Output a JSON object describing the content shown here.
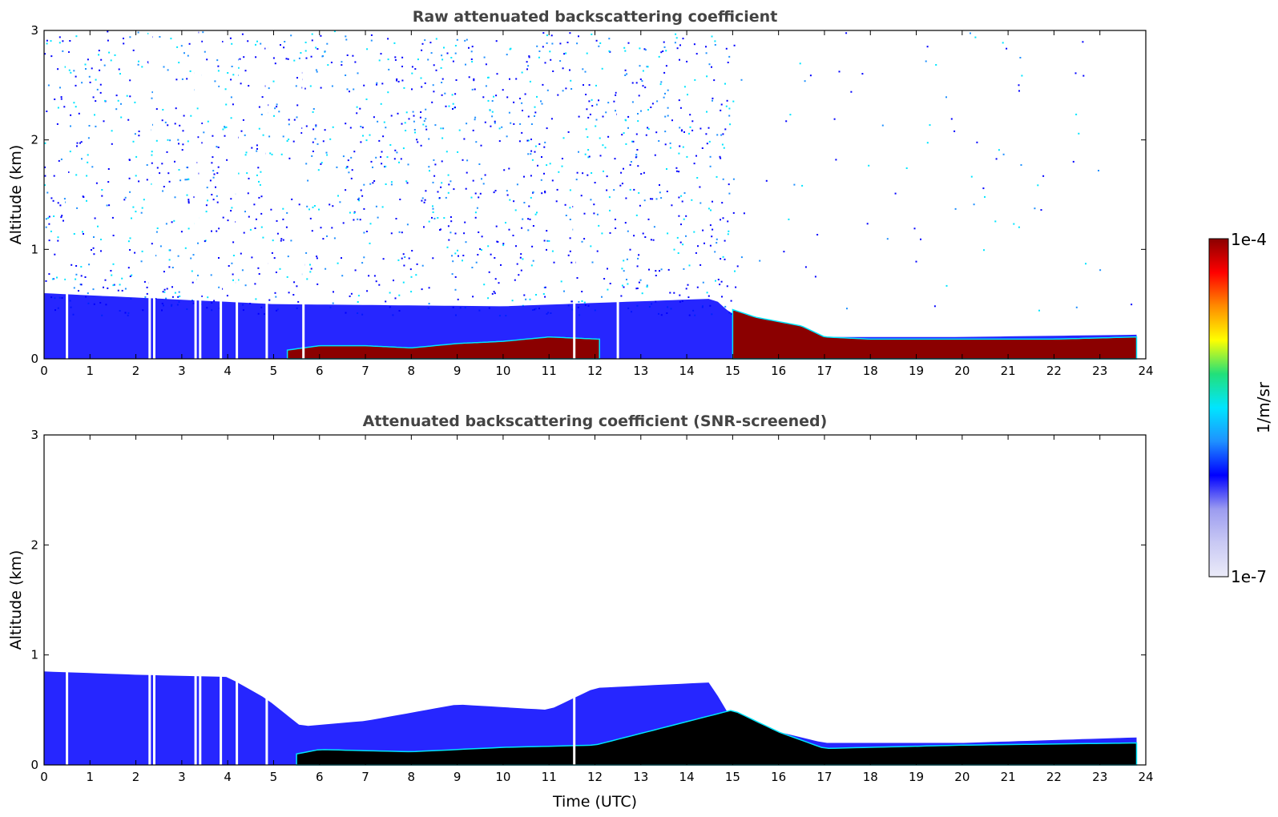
{
  "colormap": [
    "#ebebf8",
    "#c9c9f4",
    "#9c9cf0",
    "#0000ff",
    "#1e90ff",
    "#00e5ff",
    "#22e07a",
    "#ffff00",
    "#ff8c00",
    "#ff0000",
    "#8b0000"
  ],
  "chart_data": [
    {
      "type": "heatmap",
      "title": "Raw attenuated backscattering coefficient",
      "xlabel": "",
      "ylabel": "Altitude (km)",
      "xlim": [
        0,
        24
      ],
      "ylim": [
        0,
        3
      ],
      "xticks": [
        "0",
        "1",
        "2",
        "3",
        "4",
        "5",
        "6",
        "7",
        "8",
        "9",
        "10",
        "11",
        "12",
        "13",
        "14",
        "15",
        "16",
        "17",
        "18",
        "19",
        "20",
        "21",
        "22",
        "23",
        "24"
      ],
      "yticks": [
        "0",
        "1",
        "2",
        "3"
      ],
      "layers": [
        {
          "feature": "dense signal near surface",
          "x": [
            0,
            5,
            10,
            14.6,
            15,
            17,
            20,
            23.8
          ],
          "top_km": [
            0.6,
            0.5,
            0.48,
            0.55,
            0.4,
            0.2,
            0.2,
            0.22
          ],
          "level": "low"
        },
        {
          "feature": "aerosol layer",
          "x": [
            5.3,
            6,
            7,
            8,
            9,
            10,
            11,
            12.1
          ],
          "top_km": [
            0.08,
            0.12,
            0.12,
            0.1,
            0.14,
            0.16,
            0.2,
            0.18
          ],
          "level": "high"
        },
        {
          "feature": "aerosol layer",
          "x": [
            15,
            15.5,
            16.5,
            17,
            18,
            20,
            22,
            23.8
          ],
          "top_km": [
            0.45,
            0.38,
            0.3,
            0.2,
            0.18,
            0.18,
            0.18,
            0.2
          ],
          "level": "high"
        }
      ],
      "gaps_utc": [
        0.5,
        2.3,
        2.4,
        3.3,
        3.4,
        3.85,
        4.2,
        4.85,
        5.65,
        11.55,
        12.5
      ]
    },
    {
      "type": "heatmap",
      "title": "Attenuated backscattering coefficient (SNR-screened)",
      "xlabel": "Time (UTC)",
      "ylabel": "Altitude (km)",
      "xlim": [
        0,
        24
      ],
      "ylim": [
        0,
        3
      ],
      "xticks": [
        "0",
        "1",
        "2",
        "3",
        "4",
        "5",
        "6",
        "7",
        "8",
        "9",
        "10",
        "11",
        "12",
        "13",
        "14",
        "15",
        "16",
        "17",
        "18",
        "19",
        "20",
        "21",
        "22",
        "23",
        "24"
      ],
      "yticks": [
        "0",
        "1",
        "2",
        "3"
      ],
      "layers": [
        {
          "feature": "residual layer",
          "x": [
            0,
            2,
            4,
            4.85,
            5.6,
            7,
            9,
            11,
            12,
            14.5,
            15,
            17,
            20,
            23.8
          ],
          "top_km": [
            0.85,
            0.82,
            0.8,
            0.6,
            0.35,
            0.4,
            0.55,
            0.5,
            0.7,
            0.75,
            0.4,
            0.2,
            0.2,
            0.25
          ],
          "level": "low"
        },
        {
          "feature": "saturated aerosol layer",
          "x": [
            5.5,
            6,
            8,
            10,
            12,
            15,
            16,
            17,
            20,
            23.8
          ],
          "top_km": [
            0.1,
            0.14,
            0.12,
            0.16,
            0.18,
            0.5,
            0.3,
            0.15,
            0.18,
            0.2
          ],
          "level": "saturated"
        }
      ],
      "gaps_utc": [
        0.5,
        2.3,
        2.4,
        3.3,
        3.4,
        3.85,
        4.2,
        4.85,
        11.55
      ]
    }
  ],
  "colorbar": {
    "max_label": "1e-4",
    "min_label": "1e-7",
    "label": "1/m/sr"
  }
}
